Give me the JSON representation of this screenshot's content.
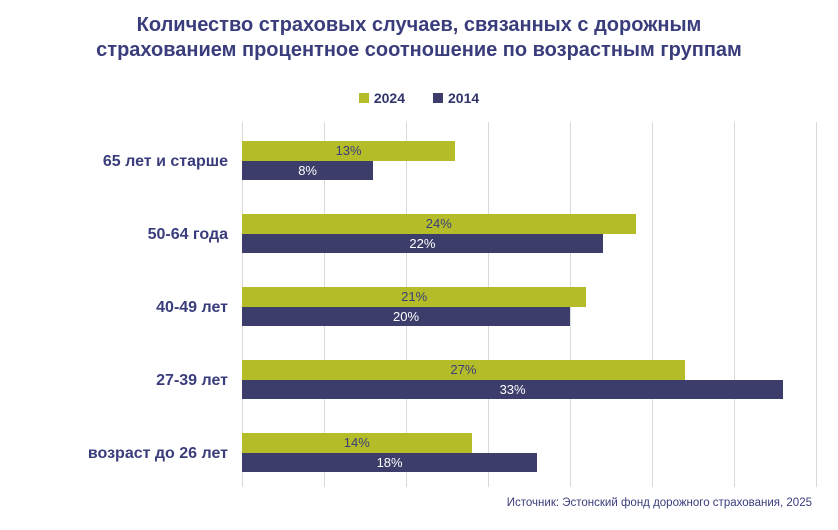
{
  "title": "Количество страховых случаев, связанных с дорожным страхованием процентное соотношение по возрастным группам",
  "source": "Источник: Эстонский фонд дорожного страхования, 2025",
  "colors": {
    "background": "#ffffff",
    "title_text": "#3a3d7c",
    "category_label_text": "#3a3d7c",
    "gridline": "#d9d9d9",
    "series_2024": "#b4bd27",
    "series_2014": "#3d3d6c",
    "label_on_2024_bar": "#3a3d7c",
    "label_on_2014_bar": "#ffffff"
  },
  "chart_data": {
    "type": "bar",
    "orientation": "horizontal",
    "title": "Количество страховых случаев, связанных с дорожным страхованием процентное соотношение по возрастным группам",
    "categories": [
      "65 лет и старше",
      "50-64 года",
      "40-49 лет",
      "27-39 лет",
      "возраст до 26 лет"
    ],
    "series": [
      {
        "name": "2024",
        "color": "#b4bd27",
        "values": [
          13,
          24,
          21,
          27,
          14
        ]
      },
      {
        "name": "2014",
        "color": "#3d3d6c",
        "values": [
          8,
          22,
          20,
          33,
          18
        ]
      }
    ],
    "value_suffix": "%",
    "data_labels": [
      "13%",
      "8%",
      "24%",
      "22%",
      "21%",
      "20%",
      "27%",
      "33%",
      "14%",
      "18%"
    ],
    "xlabel": "",
    "ylabel": "",
    "xlim": [
      0,
      35
    ],
    "gridline_step": 5,
    "grid": true,
    "x_tick_labels_visible": false,
    "legend_position": "top"
  }
}
